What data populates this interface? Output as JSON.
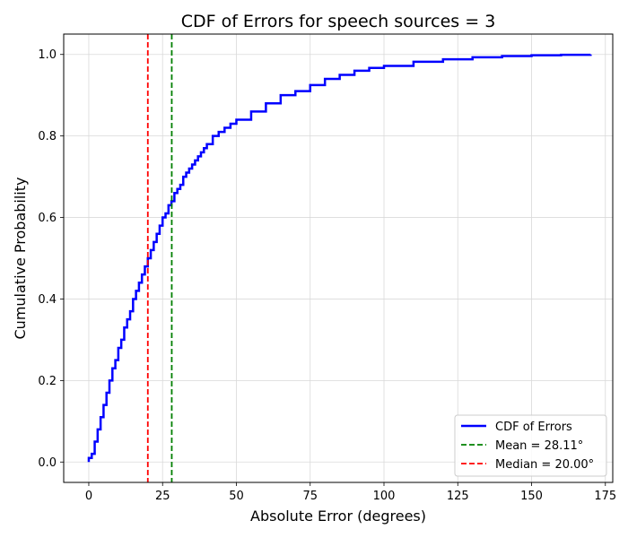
{
  "chart_data": {
    "type": "line",
    "title": "CDF of Errors for speech sources = 3",
    "xlabel": "Absolute Error (degrees)",
    "ylabel": "Cumulative Probability",
    "xlim": [
      -8.5,
      177.5
    ],
    "ylim": [
      -0.05,
      1.05
    ],
    "xticks": [
      0,
      25,
      50,
      75,
      100,
      125,
      150,
      175
    ],
    "yticks": [
      0.0,
      0.2,
      0.4,
      0.6,
      0.8,
      1.0
    ],
    "xtick_labels": [
      "0",
      "25",
      "50",
      "75",
      "100",
      "125",
      "150",
      "175"
    ],
    "ytick_labels": [
      "0.0",
      "0.2",
      "0.4",
      "0.6",
      "0.8",
      "1.0"
    ],
    "grid": true,
    "legend_position": "lower-right",
    "series": [
      {
        "name": "CDF of Errors",
        "color": "#0000ff",
        "style": "step",
        "x": [
          0,
          1,
          2,
          3,
          4,
          5,
          6,
          7,
          8,
          9,
          10,
          11,
          12,
          13,
          14,
          15,
          16,
          17,
          18,
          19,
          20,
          21,
          22,
          23,
          24,
          25,
          26,
          27,
          28,
          29,
          30,
          31,
          32,
          33,
          34,
          35,
          36,
          37,
          38,
          39,
          40,
          42,
          44,
          46,
          48,
          50,
          55,
          60,
          65,
          70,
          75,
          80,
          85,
          90,
          95,
          100,
          110,
          120,
          130,
          140,
          150,
          160,
          170
        ],
        "y": [
          0.01,
          0.02,
          0.05,
          0.08,
          0.11,
          0.14,
          0.17,
          0.2,
          0.23,
          0.25,
          0.28,
          0.3,
          0.33,
          0.35,
          0.37,
          0.4,
          0.42,
          0.44,
          0.46,
          0.48,
          0.5,
          0.52,
          0.54,
          0.56,
          0.58,
          0.6,
          0.61,
          0.63,
          0.64,
          0.66,
          0.67,
          0.68,
          0.7,
          0.71,
          0.72,
          0.73,
          0.74,
          0.75,
          0.76,
          0.77,
          0.78,
          0.8,
          0.81,
          0.82,
          0.83,
          0.84,
          0.86,
          0.88,
          0.9,
          0.91,
          0.925,
          0.94,
          0.95,
          0.96,
          0.967,
          0.972,
          0.982,
          0.988,
          0.993,
          0.996,
          0.998,
          0.999,
          1.0
        ]
      },
      {
        "name": "Mean = 28.11°",
        "color": "#008000",
        "style": "vline",
        "x": 28.11
      },
      {
        "name": "Median = 20.00°",
        "color": "#ff0000",
        "style": "vline",
        "x": 20.0
      }
    ]
  }
}
